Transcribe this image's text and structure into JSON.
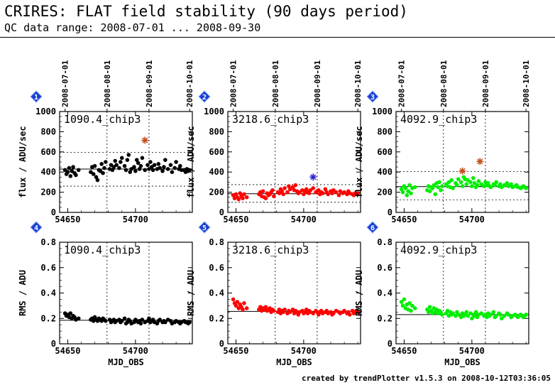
{
  "header": {
    "title": "CRIRES: FLAT field stability (90 days period)",
    "subtitle": "QC data range: 2008-07-01 ... 2008-09-30"
  },
  "footer": {
    "credit": "created by trendPlotter v1.5.3 on 2008-10-12T03:36:05"
  },
  "colors": {
    "badge": "#1a3fd0",
    "outlier_star": "#c8501e",
    "outlier_star_blue": "#2a2ad8"
  },
  "chart_data": [
    {
      "type": "scatter",
      "index": "1",
      "label": "1090.4_chip3",
      "color": "#000000",
      "ylabel": "flux / ADU/sec",
      "xlabel": "",
      "xlim": [
        54644,
        54742
      ],
      "ylim": [
        0,
        1000
      ],
      "yticks": [
        "0",
        "200",
        "400",
        "600",
        "800",
        "1000"
      ],
      "xticks": [
        "54650",
        "54700"
      ],
      "top_dates": [
        "2008-07-01",
        "2008-08-01",
        "2008-09-01",
        "2008-10-01"
      ],
      "mean": 430,
      "band": [
        260,
        595
      ],
      "x": [
        54648,
        54649,
        54650,
        54651,
        54652,
        54653,
        54654,
        54655,
        54656,
        54658,
        54667,
        54668,
        54669,
        54670,
        54671,
        54672,
        54673,
        54674,
        54675,
        54676,
        54677,
        54678,
        54681,
        54682,
        54683,
        54684,
        54685,
        54686,
        54688,
        54689,
        54690,
        54692,
        54693,
        54694,
        54695,
        54696,
        54697,
        54699,
        54700,
        54701,
        54702,
        54703,
        54704,
        54705,
        54707,
        54709,
        54710,
        54711,
        54712,
        54713,
        54714,
        54716,
        54717,
        54718,
        54720,
        54721,
        54722,
        54724,
        54726,
        54727,
        54729,
        54730,
        54732,
        54733,
        54734,
        54736,
        54737,
        54738,
        54739,
        54740
      ],
      "y": [
        420,
        380,
        400,
        440,
        360,
        410,
        450,
        390,
        370,
        420,
        400,
        450,
        380,
        460,
        350,
        320,
        420,
        410,
        480,
        390,
        440,
        500,
        430,
        470,
        420,
        450,
        510,
        470,
        440,
        500,
        540,
        460,
        420,
        520,
        570,
        400,
        430,
        450,
        410,
        520,
        490,
        430,
        460,
        540,
        420,
        470,
        430,
        500,
        450,
        420,
        470,
        430,
        480,
        440,
        410,
        450,
        520,
        430,
        470,
        400,
        440,
        500,
        430,
        460,
        420,
        420,
        400,
        430,
        410,
        420
      ],
      "outliers": [
        {
          "x": 54707,
          "y": 715
        }
      ]
    },
    {
      "type": "scatter",
      "index": "2",
      "label": "3218.6_chip3",
      "color": "#ff0000",
      "ylabel": "flux / ADU/sec",
      "xlabel": "",
      "xlim": [
        54644,
        54742
      ],
      "ylim": [
        0,
        1000
      ],
      "yticks": [
        "0",
        "200",
        "400",
        "600",
        "800",
        "1000"
      ],
      "xticks": [
        "54650",
        "54700"
      ],
      "top_dates": [
        "2008-07-01",
        "2008-08-01",
        "2008-09-01",
        "2008-10-01"
      ],
      "mean": 185,
      "band": [
        100,
        275
      ],
      "x": [
        54648,
        54649,
        54650,
        54651,
        54652,
        54653,
        54654,
        54655,
        54656,
        54658,
        54667,
        54668,
        54669,
        54670,
        54671,
        54672,
        54673,
        54674,
        54675,
        54676,
        54677,
        54678,
        54681,
        54682,
        54683,
        54684,
        54685,
        54686,
        54688,
        54689,
        54690,
        54692,
        54693,
        54694,
        54695,
        54696,
        54697,
        54699,
        54700,
        54701,
        54702,
        54703,
        54704,
        54705,
        54707,
        54709,
        54710,
        54711,
        54712,
        54713,
        54714,
        54716,
        54717,
        54718,
        54720,
        54721,
        54722,
        54724,
        54726,
        54727,
        54729,
        54730,
        54732,
        54733,
        54734,
        54736,
        54737,
        54738,
        54739,
        54740
      ],
      "y": [
        170,
        140,
        180,
        150,
        130,
        190,
        160,
        140,
        180,
        150,
        180,
        200,
        160,
        210,
        150,
        140,
        190,
        170,
        180,
        200,
        220,
        160,
        200,
        190,
        230,
        210,
        180,
        240,
        200,
        260,
        230,
        250,
        220,
        270,
        210,
        190,
        200,
        220,
        180,
        210,
        230,
        200,
        190,
        220,
        240,
        200,
        210,
        220,
        180,
        200,
        190,
        230,
        200,
        180,
        210,
        190,
        220,
        200,
        170,
        210,
        190,
        200,
        180,
        210,
        190,
        180,
        170,
        190,
        180,
        190
      ],
      "outliers": [
        {
          "x": 54707,
          "y": 350
        }
      ]
    },
    {
      "type": "scatter",
      "index": "3",
      "label": "4092.9_chip3",
      "color": "#00ee00",
      "ylabel": "flux / ADU/sec",
      "xlabel": "",
      "xlim": [
        54644,
        54742
      ],
      "ylim": [
        0,
        1000
      ],
      "yticks": [
        "0",
        "200",
        "400",
        "600",
        "800",
        "1000"
      ],
      "xticks": [
        "54650",
        "54700"
      ],
      "top_dates": [
        "2008-07-01",
        "2008-08-01",
        "2008-09-01",
        "2008-10-01"
      ],
      "mean": 255,
      "band": [
        125,
        405
      ],
      "x": [
        54648,
        54649,
        54650,
        54651,
        54652,
        54653,
        54654,
        54655,
        54656,
        54658,
        54667,
        54668,
        54669,
        54670,
        54671,
        54672,
        54673,
        54674,
        54675,
        54676,
        54677,
        54678,
        54681,
        54682,
        54683,
        54684,
        54685,
        54686,
        54688,
        54689,
        54690,
        54692,
        54693,
        54694,
        54695,
        54696,
        54697,
        54699,
        54700,
        54701,
        54702,
        54703,
        54704,
        54705,
        54707,
        54709,
        54710,
        54711,
        54712,
        54713,
        54714,
        54716,
        54717,
        54718,
        54720,
        54721,
        54722,
        54724,
        54726,
        54727,
        54729,
        54730,
        54732,
        54733,
        54734,
        54736,
        54737,
        54738,
        54739,
        54740
      ],
      "y": [
        230,
        200,
        260,
        240,
        170,
        210,
        270,
        190,
        240,
        250,
        220,
        260,
        210,
        250,
        240,
        270,
        180,
        290,
        250,
        300,
        220,
        260,
        280,
        260,
        300,
        250,
        320,
        240,
        290,
        270,
        330,
        300,
        260,
        350,
        330,
        280,
        320,
        300,
        260,
        340,
        290,
        250,
        270,
        310,
        280,
        260,
        300,
        270,
        290,
        260,
        250,
        280,
        270,
        300,
        260,
        280,
        250,
        270,
        290,
        260,
        280,
        250,
        260,
        270,
        250,
        240,
        250,
        260,
        250,
        240
      ],
      "outliers": [
        {
          "x": 54693,
          "y": 410
        },
        {
          "x": 54706,
          "y": 505
        }
      ]
    },
    {
      "type": "scatter",
      "index": "4",
      "label": "1090.4_chip3",
      "color": "#000000",
      "ylabel": "RMS / ADU",
      "xlabel": "MJD_OBS",
      "xlim": [
        54644,
        54742
      ],
      "ylim": [
        0,
        0.8
      ],
      "yticks": [
        "0",
        "0.2",
        "0.4",
        "0.6",
        "0.8"
      ],
      "xticks": [
        "54650",
        "54700"
      ],
      "mean": 0.185,
      "x": [
        54648,
        54649,
        54650,
        54651,
        54652,
        54653,
        54654,
        54655,
        54656,
        54658,
        54667,
        54668,
        54669,
        54670,
        54671,
        54672,
        54673,
        54674,
        54675,
        54676,
        54677,
        54678,
        54681,
        54682,
        54683,
        54684,
        54685,
        54686,
        54688,
        54689,
        54690,
        54692,
        54693,
        54694,
        54695,
        54696,
        54697,
        54699,
        54700,
        54701,
        54702,
        54703,
        54704,
        54705,
        54707,
        54709,
        54710,
        54711,
        54712,
        54713,
        54714,
        54716,
        54717,
        54718,
        54720,
        54721,
        54722,
        54724,
        54726,
        54727,
        54729,
        54730,
        54732,
        54733,
        54734,
        54736,
        54737,
        54738,
        54739,
        54740
      ],
      "y": [
        0.24,
        0.22,
        0.23,
        0.21,
        0.24,
        0.2,
        0.22,
        0.21,
        0.19,
        0.2,
        0.19,
        0.2,
        0.18,
        0.21,
        0.19,
        0.18,
        0.2,
        0.19,
        0.18,
        0.2,
        0.19,
        0.18,
        0.19,
        0.17,
        0.18,
        0.19,
        0.17,
        0.18,
        0.19,
        0.17,
        0.18,
        0.2,
        0.16,
        0.17,
        0.19,
        0.18,
        0.16,
        0.17,
        0.19,
        0.18,
        0.17,
        0.18,
        0.16,
        0.19,
        0.17,
        0.18,
        0.2,
        0.17,
        0.18,
        0.19,
        0.17,
        0.16,
        0.18,
        0.19,
        0.17,
        0.18,
        0.17,
        0.19,
        0.18,
        0.16,
        0.17,
        0.18,
        0.17,
        0.16,
        0.17,
        0.18,
        0.17,
        0.17,
        0.16,
        0.17
      ],
      "outliers": []
    },
    {
      "type": "scatter",
      "index": "5",
      "label": "3218.6_chip3",
      "color": "#ff0000",
      "ylabel": "RMS / ADU",
      "xlabel": "MJD_OBS",
      "xlim": [
        54644,
        54742
      ],
      "ylim": [
        0,
        0.8
      ],
      "yticks": [
        "0",
        "0.2",
        "0.4",
        "0.6",
        "0.8"
      ],
      "xticks": [
        "54650",
        "54700"
      ],
      "mean": 0.255,
      "x": [
        54648,
        54649,
        54650,
        54651,
        54652,
        54653,
        54654,
        54655,
        54656,
        54658,
        54667,
        54668,
        54669,
        54670,
        54671,
        54672,
        54673,
        54674,
        54675,
        54676,
        54677,
        54678,
        54681,
        54682,
        54683,
        54684,
        54685,
        54686,
        54688,
        54689,
        54690,
        54692,
        54693,
        54694,
        54695,
        54696,
        54697,
        54699,
        54700,
        54701,
        54702,
        54703,
        54704,
        54705,
        54707,
        54709,
        54710,
        54711,
        54712,
        54713,
        54714,
        54716,
        54717,
        54718,
        54720,
        54721,
        54722,
        54724,
        54726,
        54727,
        54729,
        54730,
        54732,
        54733,
        54734,
        54736,
        54737,
        54738,
        54739,
        54740
      ],
      "y": [
        0.35,
        0.32,
        0.3,
        0.33,
        0.28,
        0.31,
        0.29,
        0.27,
        0.32,
        0.28,
        0.27,
        0.29,
        0.26,
        0.28,
        0.27,
        0.29,
        0.26,
        0.27,
        0.28,
        0.25,
        0.27,
        0.26,
        0.25,
        0.27,
        0.24,
        0.26,
        0.25,
        0.27,
        0.24,
        0.26,
        0.25,
        0.27,
        0.24,
        0.26,
        0.25,
        0.23,
        0.25,
        0.26,
        0.24,
        0.25,
        0.27,
        0.24,
        0.26,
        0.25,
        0.24,
        0.26,
        0.25,
        0.23,
        0.25,
        0.26,
        0.24,
        0.25,
        0.26,
        0.24,
        0.25,
        0.23,
        0.24,
        0.26,
        0.25,
        0.24,
        0.25,
        0.26,
        0.24,
        0.25,
        0.23,
        0.26,
        0.24,
        0.25,
        0.26,
        0.25
      ],
      "outliers": []
    },
    {
      "type": "scatter",
      "index": "6",
      "label": "4092.9_chip3",
      "color": "#00ee00",
      "ylabel": "RMS / ADU",
      "xlabel": "MJD_OBS",
      "xlim": [
        54644,
        54742
      ],
      "ylim": [
        0,
        0.8
      ],
      "yticks": [
        "0",
        "0.2",
        "0.4",
        "0.6",
        "0.8"
      ],
      "xticks": [
        "54650",
        "54700"
      ],
      "mean": 0.23,
      "x": [
        54648,
        54649,
        54650,
        54651,
        54652,
        54653,
        54654,
        54655,
        54656,
        54658,
        54667,
        54668,
        54669,
        54670,
        54671,
        54672,
        54673,
        54674,
        54675,
        54676,
        54677,
        54678,
        54681,
        54682,
        54683,
        54684,
        54685,
        54686,
        54688,
        54689,
        54690,
        54692,
        54693,
        54694,
        54695,
        54696,
        54697,
        54699,
        54700,
        54701,
        54702,
        54703,
        54704,
        54705,
        54707,
        54709,
        54710,
        54711,
        54712,
        54713,
        54714,
        54716,
        54717,
        54718,
        54720,
        54721,
        54722,
        54724,
        54726,
        54727,
        54729,
        54730,
        54732,
        54733,
        54734,
        54736,
        54737,
        54738,
        54739,
        54740
      ],
      "y": [
        0.33,
        0.3,
        0.35,
        0.28,
        0.31,
        0.27,
        0.32,
        0.26,
        0.3,
        0.28,
        0.27,
        0.25,
        0.29,
        0.26,
        0.24,
        0.28,
        0.25,
        0.27,
        0.24,
        0.26,
        0.25,
        0.23,
        0.24,
        0.26,
        0.22,
        0.25,
        0.23,
        0.24,
        0.22,
        0.25,
        0.23,
        0.21,
        0.24,
        0.22,
        0.23,
        0.25,
        0.22,
        0.24,
        0.2,
        0.23,
        0.22,
        0.25,
        0.21,
        0.23,
        0.24,
        0.22,
        0.23,
        0.21,
        0.24,
        0.22,
        0.23,
        0.25,
        0.21,
        0.22,
        0.24,
        0.23,
        0.2,
        0.22,
        0.24,
        0.23,
        0.21,
        0.22,
        0.23,
        0.22,
        0.21,
        0.23,
        0.22,
        0.21,
        0.22,
        0.23
      ],
      "outliers": []
    }
  ]
}
